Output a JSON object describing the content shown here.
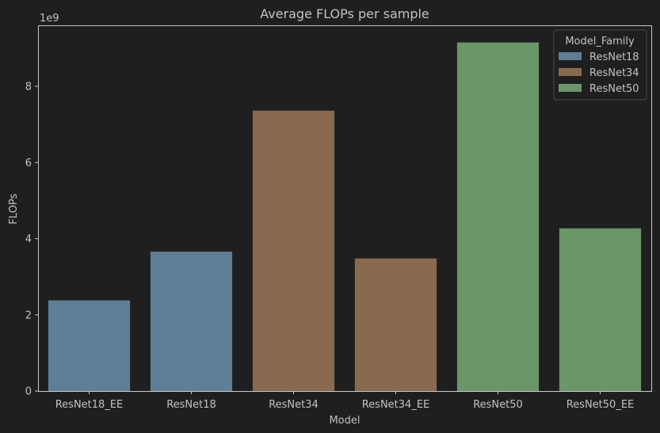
{
  "chart_data": {
    "type": "bar",
    "title": "Average FLOPs per sample",
    "xlabel": "Model",
    "ylabel": "FLOPs",
    "y_offset_label": "1e9",
    "ylim": [
      0,
      9.6
    ],
    "yticks": [
      0,
      2,
      4,
      6,
      8
    ],
    "grid": false,
    "legend_position": "top-right",
    "legend": {
      "title": "Model_Family",
      "entries": [
        {
          "name": "ResNet18",
          "color": "#5f7f98"
        },
        {
          "name": "ResNet34",
          "color": "#8a6a4e"
        },
        {
          "name": "ResNet50",
          "color": "#6a9669"
        }
      ]
    },
    "categories": [
      "ResNet18_EE",
      "ResNet18",
      "ResNet34",
      "ResNet34_EE",
      "ResNet50",
      "ResNet50_EE"
    ],
    "values": [
      2.38,
      3.66,
      7.36,
      3.48,
      9.15,
      4.27
    ],
    "families": [
      "ResNet18",
      "ResNet18",
      "ResNet34",
      "ResNet34",
      "ResNet50",
      "ResNet50"
    ]
  }
}
